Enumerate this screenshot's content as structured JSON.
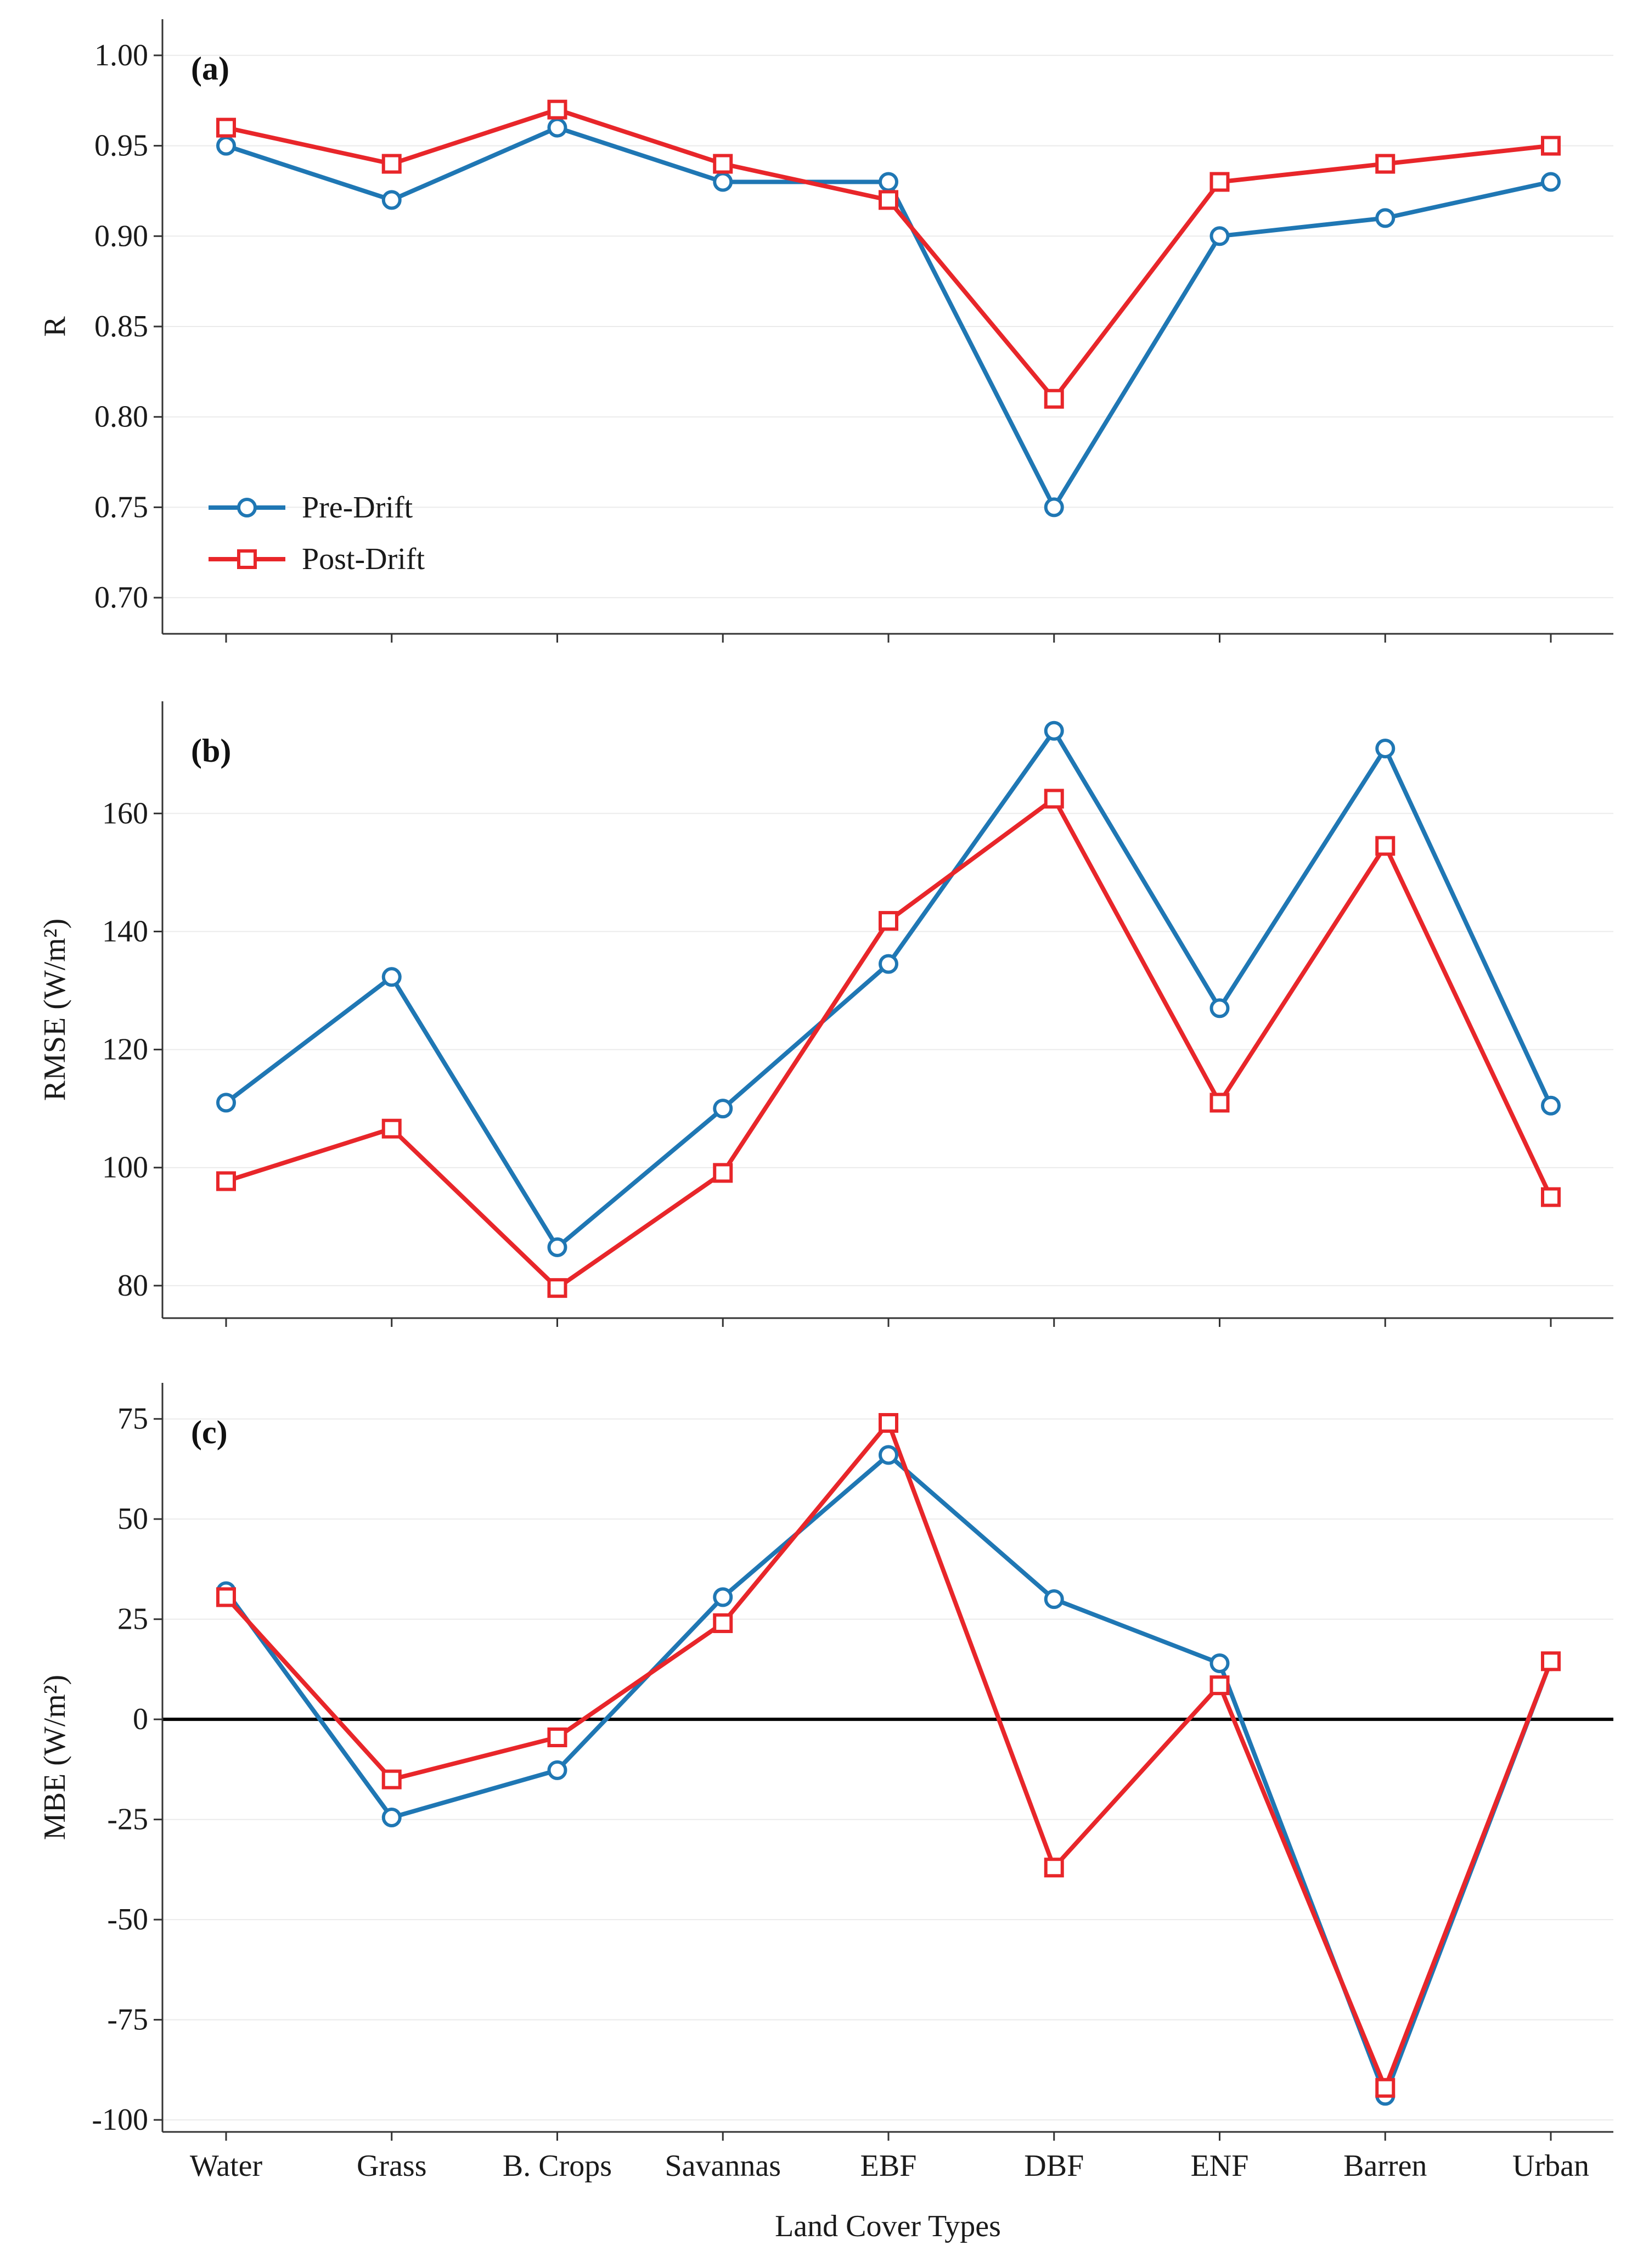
{
  "chart_data": [
    {
      "type": "line",
      "panel_label": "(a)",
      "categories": [
        "Water",
        "Grass",
        "B. Crops",
        "Savannas",
        "EBF",
        "DBF",
        "ENF",
        "Barren",
        "Urban"
      ],
      "ylabel": "R",
      "xlabel": "",
      "ylim": [
        0.68,
        1.02
      ],
      "yticks": [
        0.7,
        0.75,
        0.8,
        0.85,
        0.9,
        0.95,
        1.0
      ],
      "ytick_labels": [
        "0.70",
        "0.75",
        "0.80",
        "0.85",
        "0.90",
        "0.95",
        "1.00"
      ],
      "series": [
        {
          "name": "Pre-Drift",
          "color": "#1f77b4",
          "marker": "circle",
          "values": [
            0.95,
            0.92,
            0.96,
            0.93,
            0.93,
            0.75,
            0.9,
            0.91,
            0.93
          ]
        },
        {
          "name": "Post-Drift",
          "color": "#e8262a",
          "marker": "square",
          "values": [
            0.96,
            0.94,
            0.97,
            0.94,
            0.92,
            0.81,
            0.93,
            0.94,
            0.95
          ]
        }
      ],
      "legend": {
        "position": "bottom-left",
        "items": [
          "Pre-Drift",
          "Post-Drift"
        ]
      }
    },
    {
      "type": "line",
      "panel_label": "(b)",
      "categories": [
        "Water",
        "Grass",
        "B. Crops",
        "Savannas",
        "EBF",
        "DBF",
        "ENF",
        "Barren",
        "Urban"
      ],
      "ylabel": "RMSE (W/m²)",
      "xlabel": "",
      "ylim": [
        74.5,
        179
      ],
      "yticks": [
        80,
        100,
        120,
        140,
        160
      ],
      "ytick_labels": [
        "80",
        "100",
        "120",
        "140",
        "160"
      ],
      "series": [
        {
          "name": "Pre-Drift",
          "color": "#1f77b4",
          "marker": "circle",
          "values": [
            111,
            132.3,
            86.5,
            110,
            134.5,
            174,
            127,
            171,
            110.5
          ]
        },
        {
          "name": "Post-Drift",
          "color": "#e8262a",
          "marker": "square",
          "values": [
            97.7,
            106.6,
            79.6,
            99.1,
            141.8,
            162.5,
            111,
            154.5,
            95
          ]
        }
      ]
    },
    {
      "type": "line",
      "panel_label": "(c)",
      "categories": [
        "Water",
        "Grass",
        "B. Crops",
        "Savannas",
        "EBF",
        "DBF",
        "ENF",
        "Barren",
        "Urban"
      ],
      "ylabel": "MBE (W/m²)",
      "xlabel": "Land Cover Types",
      "ylim": [
        -103,
        84
      ],
      "yticks": [
        -100,
        -75,
        -50,
        -25,
        0,
        25,
        50,
        75
      ],
      "ytick_labels": [
        "-100",
        "-75",
        "-50",
        "-25",
        "0",
        "25",
        "50",
        "75"
      ],
      "zero_line": true,
      "series": [
        {
          "name": "Pre-Drift",
          "color": "#1f77b4",
          "marker": "circle",
          "values": [
            32,
            -24.5,
            -12.7,
            30.5,
            66,
            30,
            14,
            -94,
            14.5
          ]
        },
        {
          "name": "Post-Drift",
          "color": "#e8262a",
          "marker": "square",
          "values": [
            30.5,
            -15,
            -4.5,
            24,
            74,
            -37,
            8.5,
            -92,
            14.5
          ]
        }
      ]
    }
  ]
}
